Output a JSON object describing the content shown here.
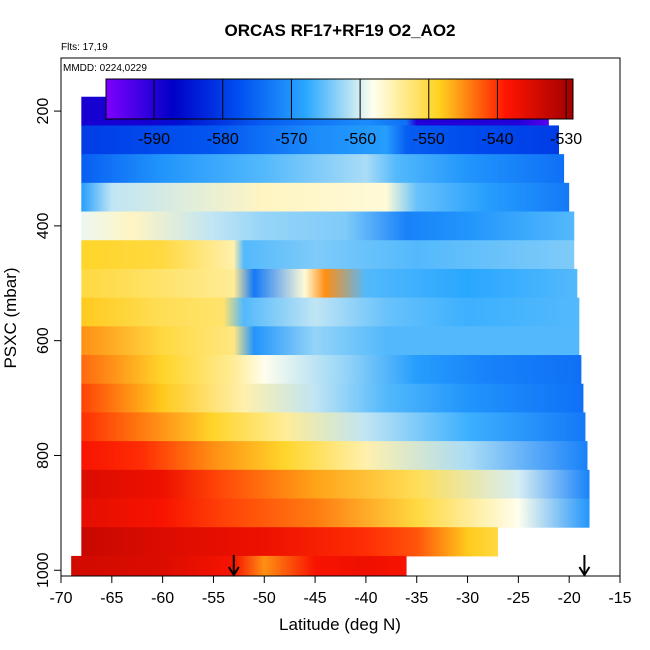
{
  "chart_data": {
    "type": "heatmap",
    "title": "ORCAS RF17+RF19 O2_AO2",
    "flights_note": "Flts: 17,19",
    "date_note": "MMDD: 0224,0229",
    "xlabel": "Latitude (deg N)",
    "ylabel": "PSXC (mbar)",
    "xlim": [
      -70,
      -15
    ],
    "ylim": [
      1000,
      100
    ],
    "xticks": [
      "-70",
      "-65",
      "-60",
      "-55",
      "-50",
      "-45",
      "-40",
      "-35",
      "-30",
      "-25",
      "-20",
      "-15"
    ],
    "yticks": [
      "200",
      "400",
      "600",
      "800",
      "1000"
    ],
    "colorbar": {
      "range": [
        -597,
        -529
      ],
      "ticks": [
        "-590",
        "-580",
        "-570",
        "-560",
        "-550",
        "-540",
        "-530"
      ],
      "colors": [
        "#7f00ff",
        "#0000c8",
        "#0050f0",
        "#2aa8ff",
        "#fffff0",
        "#ffd21e",
        "#ff1400",
        "#a00000"
      ]
    },
    "arrows_lat": [
      -53,
      -18.5
    ],
    "bands": [
      {
        "p": [
          175,
          225
        ],
        "lat": [
          -68,
          -22
        ],
        "stops": [
          [
            -68,
            -589
          ],
          [
            -62,
            -589
          ],
          [
            -58,
            -585
          ],
          [
            -50,
            -576
          ],
          [
            -40,
            -571
          ],
          [
            -36,
            -574
          ],
          [
            -35,
            -590
          ],
          [
            -25,
            -590
          ],
          [
            -22,
            -594
          ]
        ]
      },
      {
        "p": [
          225,
          275
        ],
        "lat": [
          -68,
          -21
        ],
        "stops": [
          [
            -68,
            -580
          ],
          [
            -55,
            -577
          ],
          [
            -45,
            -571
          ],
          [
            -38,
            -569
          ],
          [
            -36,
            -576
          ],
          [
            -30,
            -578
          ],
          [
            -21,
            -580
          ]
        ]
      },
      {
        "p": [
          275,
          325
        ],
        "lat": [
          -68,
          -20.5
        ],
        "stops": [
          [
            -68,
            -576
          ],
          [
            -60,
            -570
          ],
          [
            -50,
            -566
          ],
          [
            -40,
            -562
          ],
          [
            -37,
            -566
          ],
          [
            -30,
            -570
          ],
          [
            -20.5,
            -574
          ]
        ]
      },
      {
        "p": [
          325,
          375
        ],
        "lat": [
          -68,
          -20
        ],
        "stops": [
          [
            -68,
            -569
          ],
          [
            -65,
            -561
          ],
          [
            -50,
            -556
          ],
          [
            -38,
            -557
          ],
          [
            -35,
            -565
          ],
          [
            -28,
            -569
          ],
          [
            -20,
            -573
          ]
        ]
      },
      {
        "p": [
          375,
          425
        ],
        "lat": [
          -68,
          -19.5
        ],
        "stops": [
          [
            -68,
            -559
          ],
          [
            -63,
            -556
          ],
          [
            -55,
            -561
          ],
          [
            -50,
            -563
          ],
          [
            -42,
            -564
          ],
          [
            -36,
            -572
          ],
          [
            -30,
            -570
          ],
          [
            -19.5,
            -566
          ]
        ]
      },
      {
        "p": [
          425,
          475
        ],
        "lat": [
          -68,
          -19.5
        ],
        "stops": [
          [
            -68,
            -549
          ],
          [
            -60,
            -550
          ],
          [
            -53,
            -555
          ],
          [
            -52,
            -566
          ],
          [
            -45,
            -564
          ],
          [
            -35,
            -566
          ],
          [
            -19.5,
            -564
          ]
        ]
      },
      {
        "p": [
          475,
          525
        ],
        "lat": [
          -68,
          -19.2
        ],
        "stops": [
          [
            -68,
            -550
          ],
          [
            -60,
            -552
          ],
          [
            -53,
            -554
          ],
          [
            -51,
            -573
          ],
          [
            -46,
            -557
          ],
          [
            -44,
            -545
          ],
          [
            -40,
            -566
          ],
          [
            -30,
            -568
          ],
          [
            -19.2,
            -566
          ]
        ]
      },
      {
        "p": [
          525,
          575
        ],
        "lat": [
          -68,
          -19
        ],
        "stops": [
          [
            -68,
            -548
          ],
          [
            -60,
            -551
          ],
          [
            -54,
            -552
          ],
          [
            -52,
            -566
          ],
          [
            -45,
            -561
          ],
          [
            -38,
            -565
          ],
          [
            -30,
            -567
          ],
          [
            -19,
            -566
          ]
        ]
      },
      {
        "p": [
          575,
          625
        ],
        "lat": [
          -68,
          -19
        ],
        "stops": [
          [
            -68,
            -545
          ],
          [
            -60,
            -550
          ],
          [
            -53,
            -553
          ],
          [
            -51,
            -570
          ],
          [
            -45,
            -563
          ],
          [
            -38,
            -566
          ],
          [
            -30,
            -566
          ],
          [
            -19,
            -566
          ]
        ]
      },
      {
        "p": [
          625,
          675
        ],
        "lat": [
          -68,
          -18.8
        ],
        "stops": [
          [
            -68,
            -543
          ],
          [
            -60,
            -549
          ],
          [
            -53,
            -554
          ],
          [
            -50,
            -558
          ],
          [
            -42,
            -563
          ],
          [
            -35,
            -569
          ],
          [
            -28,
            -572
          ],
          [
            -19,
            -574
          ]
        ]
      },
      {
        "p": [
          675,
          725
        ],
        "lat": [
          -68,
          -18.6
        ],
        "stops": [
          [
            -68,
            -541
          ],
          [
            -60,
            -548
          ],
          [
            -52,
            -555
          ],
          [
            -45,
            -561
          ],
          [
            -38,
            -566
          ],
          [
            -30,
            -570
          ],
          [
            -18.6,
            -574
          ]
        ]
      },
      {
        "p": [
          725,
          775
        ],
        "lat": [
          -68,
          -18.4
        ],
        "stops": [
          [
            -68,
            -540
          ],
          [
            -62,
            -544
          ],
          [
            -55,
            -549
          ],
          [
            -48,
            -554
          ],
          [
            -40,
            -561
          ],
          [
            -30,
            -567
          ],
          [
            -18.4,
            -573
          ]
        ]
      },
      {
        "p": [
          775,
          825
        ],
        "lat": [
          -68,
          -18.2
        ],
        "stops": [
          [
            -68,
            -538
          ],
          [
            -62,
            -540
          ],
          [
            -55,
            -545
          ],
          [
            -48,
            -549
          ],
          [
            -40,
            -555
          ],
          [
            -30,
            -562
          ],
          [
            -18.2,
            -572
          ]
        ]
      },
      {
        "p": [
          825,
          875
        ],
        "lat": [
          -68,
          -18
        ],
        "stops": [
          [
            -68,
            -535
          ],
          [
            -60,
            -537
          ],
          [
            -55,
            -541
          ],
          [
            -45,
            -546
          ],
          [
            -35,
            -551
          ],
          [
            -25,
            -560
          ],
          [
            -18,
            -572
          ]
        ]
      },
      {
        "p": [
          875,
          925
        ],
        "lat": [
          -68,
          -18
        ],
        "stops": [
          [
            -68,
            -536
          ],
          [
            -60,
            -538
          ],
          [
            -54,
            -541
          ],
          [
            -45,
            -544
          ],
          [
            -35,
            -550
          ],
          [
            -25,
            -558
          ],
          [
            -18,
            -570
          ]
        ]
      },
      {
        "p": [
          925,
          975
        ],
        "lat": [
          -68,
          -27
        ],
        "stops": [
          [
            -68,
            -533
          ],
          [
            -60,
            -535
          ],
          [
            -50,
            -537
          ],
          [
            -40,
            -540
          ],
          [
            -35,
            -542
          ],
          [
            -30,
            -548
          ],
          [
            -27,
            -550
          ]
        ]
      },
      {
        "p": [
          975,
          1010
        ],
        "lat": [
          -69,
          -36
        ],
        "stops": [
          [
            -69,
            -534
          ],
          [
            -60,
            -535
          ],
          [
            -53,
            -538
          ],
          [
            -50,
            -545
          ],
          [
            -45,
            -538
          ],
          [
            -40,
            -537
          ],
          [
            -36,
            -538
          ]
        ]
      }
    ]
  }
}
